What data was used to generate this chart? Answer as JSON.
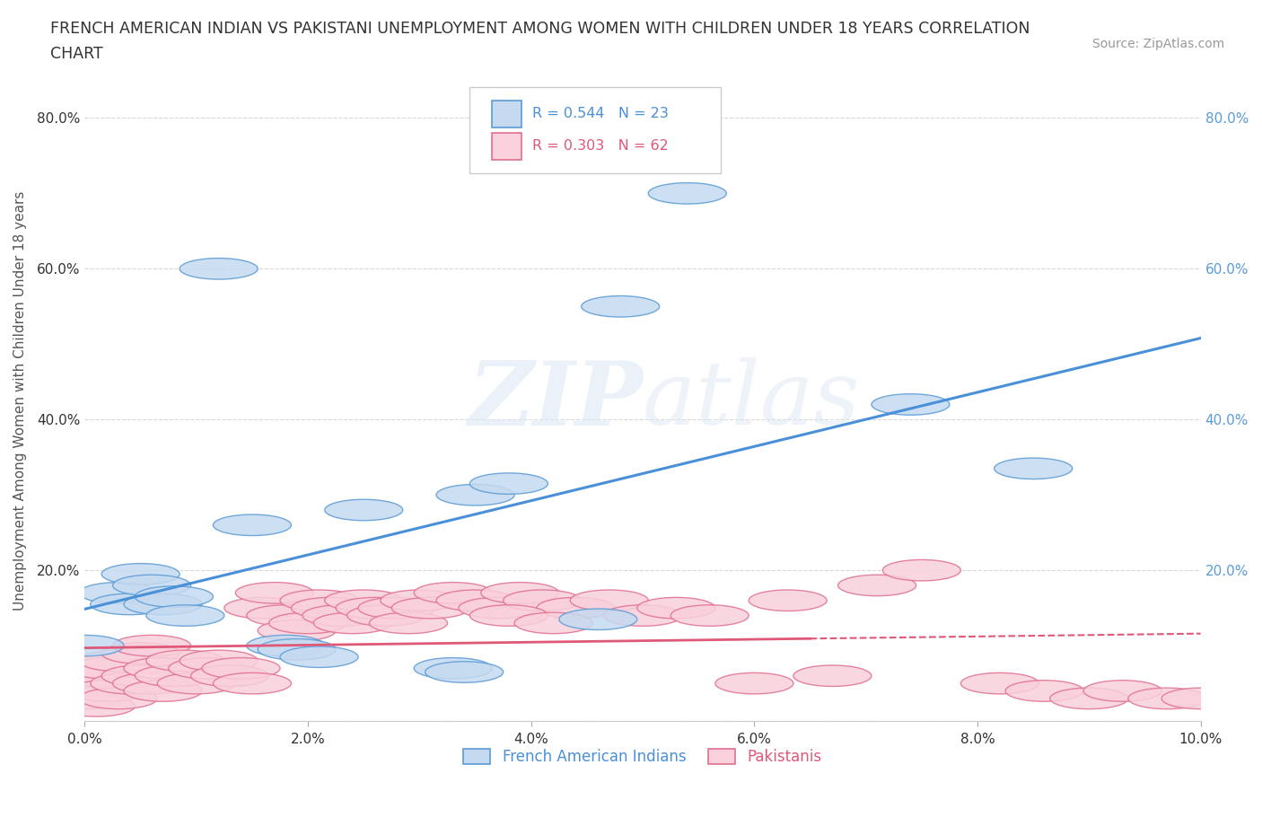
{
  "title_line1": "FRENCH AMERICAN INDIAN VS PAKISTANI UNEMPLOYMENT AMONG WOMEN WITH CHILDREN UNDER 18 YEARS CORRELATION",
  "title_line2": "CHART",
  "source": "Source: ZipAtlas.com",
  "ylabel": "Unemployment Among Women with Children Under 18 years",
  "xlim": [
    0.0,
    0.1
  ],
  "ylim": [
    0.0,
    0.85
  ],
  "xticks": [
    0.0,
    0.02,
    0.04,
    0.06,
    0.08,
    0.1
  ],
  "xtick_labels": [
    "0.0%",
    "2.0%",
    "4.0%",
    "6.0%",
    "8.0%",
    "10.0%"
  ],
  "ytick_labels_left": [
    "",
    "20.0%",
    "40.0%",
    "60.0%",
    "80.0%"
  ],
  "ytick_labels_right": [
    "",
    "20.0%",
    "40.0%",
    "60.0%",
    "80.0%"
  ],
  "yticks": [
    0.0,
    0.2,
    0.4,
    0.6,
    0.8
  ],
  "blue_R": 0.544,
  "blue_N": 23,
  "pink_R": 0.303,
  "pink_N": 62,
  "blue_face_color": "#c5daf0",
  "blue_edge_color": "#5b9bd5",
  "pink_face_color": "#f9d0dc",
  "pink_edge_color": "#e07090",
  "blue_line_color": "#4a90d9",
  "pink_line_color": "#e05878",
  "background_color": "#ffffff",
  "grid_color": "#d8d8d8",
  "title_color": "#333333",
  "ylabel_color": "#555555",
  "tick_color_left": "#333333",
  "tick_color_right": "#5b9bd5",
  "watermark_color": "#e8eef5",
  "legend_labels": [
    "French American Indians",
    "Pakistanis"
  ],
  "blue_x": [
    0.0,
    0.003,
    0.004,
    0.005,
    0.006,
    0.007,
    0.008,
    0.009,
    0.012,
    0.015,
    0.018,
    0.019,
    0.021,
    0.025,
    0.033,
    0.034,
    0.046,
    0.048,
    0.054,
    0.074,
    0.085,
    0.035,
    0.038
  ],
  "blue_y": [
    0.1,
    0.17,
    0.155,
    0.195,
    0.18,
    0.155,
    0.165,
    0.14,
    0.6,
    0.26,
    0.1,
    0.095,
    0.085,
    0.28,
    0.07,
    0.065,
    0.135,
    0.55,
    0.7,
    0.42,
    0.335,
    0.3,
    0.315
  ],
  "pink_x": [
    0.0,
    0.0,
    0.001,
    0.001,
    0.002,
    0.002,
    0.003,
    0.003,
    0.004,
    0.005,
    0.005,
    0.006,
    0.006,
    0.007,
    0.007,
    0.008,
    0.009,
    0.01,
    0.011,
    0.012,
    0.013,
    0.014,
    0.015,
    0.016,
    0.017,
    0.018,
    0.019,
    0.02,
    0.021,
    0.022,
    0.023,
    0.024,
    0.025,
    0.026,
    0.027,
    0.028,
    0.029,
    0.03,
    0.031,
    0.033,
    0.035,
    0.037,
    0.039,
    0.041,
    0.044,
    0.047,
    0.05,
    0.053,
    0.056,
    0.06,
    0.063,
    0.067,
    0.071,
    0.075,
    0.082,
    0.086,
    0.09,
    0.093,
    0.097,
    0.1,
    0.038,
    0.042
  ],
  "pink_y": [
    0.03,
    0.05,
    0.02,
    0.06,
    0.04,
    0.07,
    0.03,
    0.08,
    0.05,
    0.06,
    0.09,
    0.05,
    0.1,
    0.04,
    0.07,
    0.06,
    0.08,
    0.05,
    0.07,
    0.08,
    0.06,
    0.07,
    0.05,
    0.15,
    0.17,
    0.14,
    0.12,
    0.13,
    0.16,
    0.15,
    0.14,
    0.13,
    0.16,
    0.15,
    0.14,
    0.15,
    0.13,
    0.16,
    0.15,
    0.17,
    0.16,
    0.15,
    0.17,
    0.16,
    0.15,
    0.16,
    0.14,
    0.15,
    0.14,
    0.05,
    0.16,
    0.06,
    0.18,
    0.2,
    0.05,
    0.04,
    0.03,
    0.04,
    0.03,
    0.03,
    0.14,
    0.13
  ]
}
